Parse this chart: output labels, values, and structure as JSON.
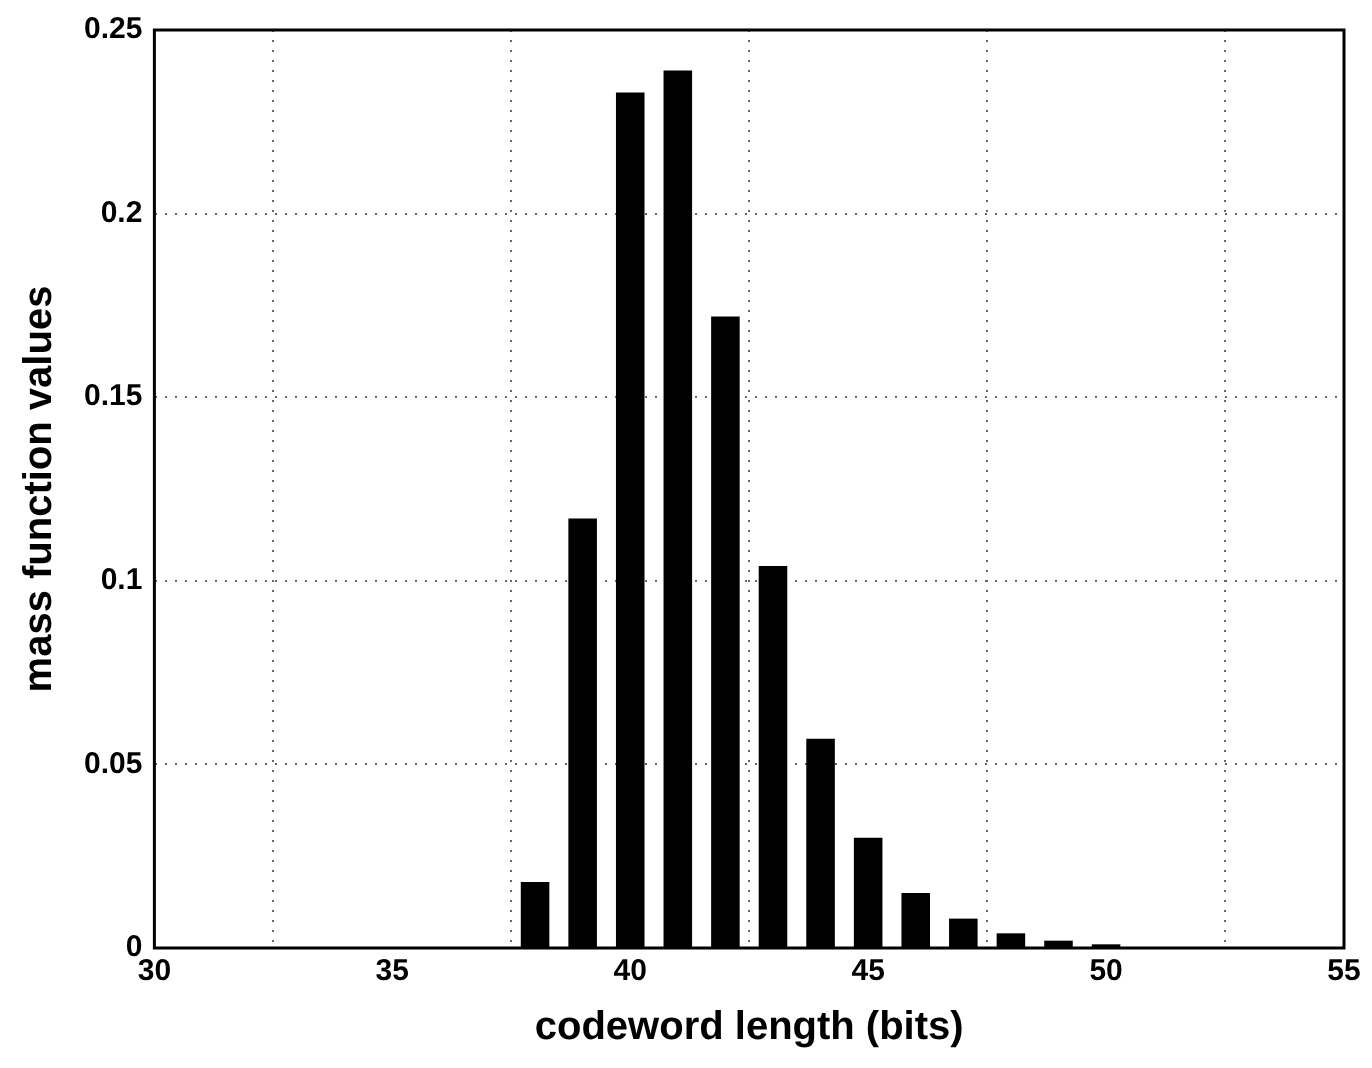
{
  "chart_data": {
    "type": "bar",
    "xlabel": "codeword length (bits)",
    "ylabel": "mass function values",
    "x": [
      38,
      39,
      40,
      41,
      42,
      43,
      44,
      45,
      46,
      47,
      48,
      49,
      50
    ],
    "values": [
      0.018,
      0.117,
      0.233,
      0.239,
      0.172,
      0.104,
      0.057,
      0.03,
      0.015,
      0.008,
      0.004,
      0.002,
      0.001
    ],
    "color": "#000000",
    "xlim": [
      30,
      55
    ],
    "xticks": [
      30,
      35,
      40,
      45,
      50,
      55
    ],
    "ylim": [
      0,
      0.25
    ],
    "yticks": [
      0,
      0.05,
      0.1,
      0.15,
      0.2,
      0.25
    ],
    "grid": true
  }
}
